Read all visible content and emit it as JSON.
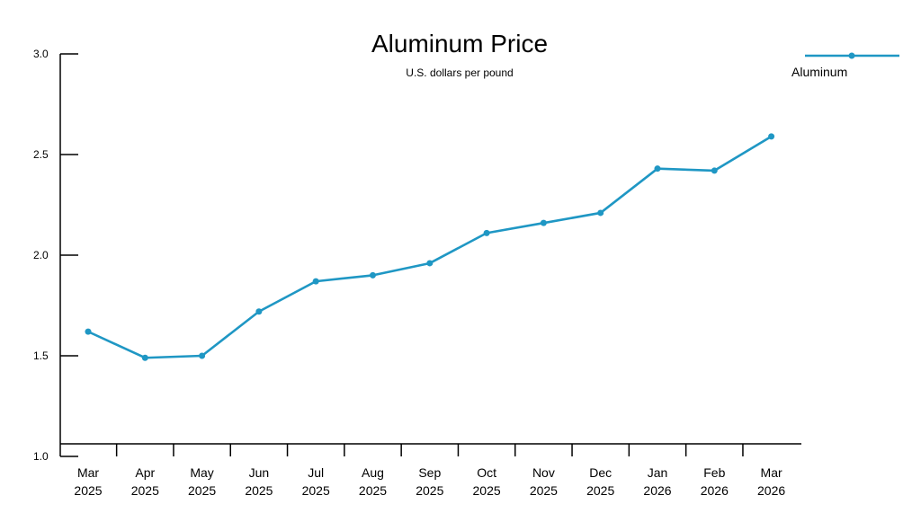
{
  "chart_data": {
    "type": "line",
    "title": "Aluminum Price",
    "subtitle": "U.S. dollars per pound",
    "categories": [
      [
        "Mar",
        "2025"
      ],
      [
        "Apr",
        "2025"
      ],
      [
        "May",
        "2025"
      ],
      [
        "Jun",
        "2025"
      ],
      [
        "Jul",
        "2025"
      ],
      [
        "Aug",
        "2025"
      ],
      [
        "Sep",
        "2025"
      ],
      [
        "Oct",
        "2025"
      ],
      [
        "Nov",
        "2025"
      ],
      [
        "Dec",
        "2025"
      ],
      [
        "Jan",
        "2026"
      ],
      [
        "Feb",
        "2026"
      ],
      [
        "Mar",
        "2026"
      ]
    ],
    "series": [
      {
        "name": "Aluminum",
        "color": "#1f97c4",
        "values": [
          1.62,
          1.49,
          1.5,
          1.72,
          1.87,
          1.9,
          1.96,
          2.11,
          2.16,
          2.21,
          2.43,
          2.42,
          2.59
        ]
      }
    ],
    "yticks": [
      "1.0",
      "1.5",
      "2.0",
      "2.5",
      "3.0"
    ],
    "ylim": [
      1.0,
      3.0
    ],
    "grid": false,
    "legend_position": "top-right"
  }
}
